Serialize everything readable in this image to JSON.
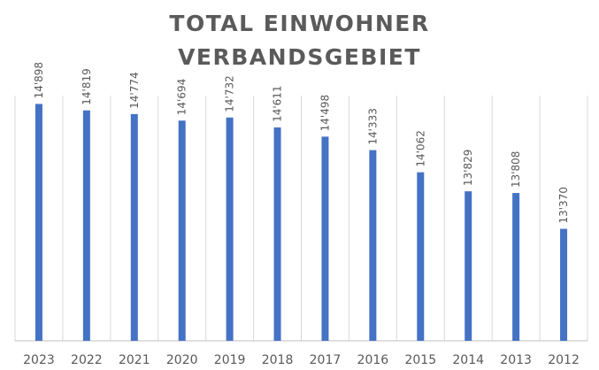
{
  "chart_data": {
    "type": "bar",
    "title_lines": [
      "TOTAL EINWOHNER",
      "VERBANDSGEBIET"
    ],
    "categories": [
      "2023",
      "2022",
      "2021",
      "2020",
      "2019",
      "2018",
      "2017",
      "2016",
      "2015",
      "2014",
      "2013",
      "2012"
    ],
    "values": [
      14898,
      14819,
      14774,
      14694,
      14732,
      14611,
      14498,
      14333,
      14062,
      13829,
      13808,
      13370
    ],
    "value_labels": [
      "14'898",
      "14'819",
      "14'774",
      "14'694",
      "14'732",
      "14'611",
      "14'498",
      "14'333",
      "14'062",
      "13'829",
      "13'808",
      "13'370"
    ],
    "ylim": [
      12000,
      15000
    ],
    "grid": "vertical-category-separators",
    "bar_color": "#4472c4",
    "legend": "none"
  }
}
